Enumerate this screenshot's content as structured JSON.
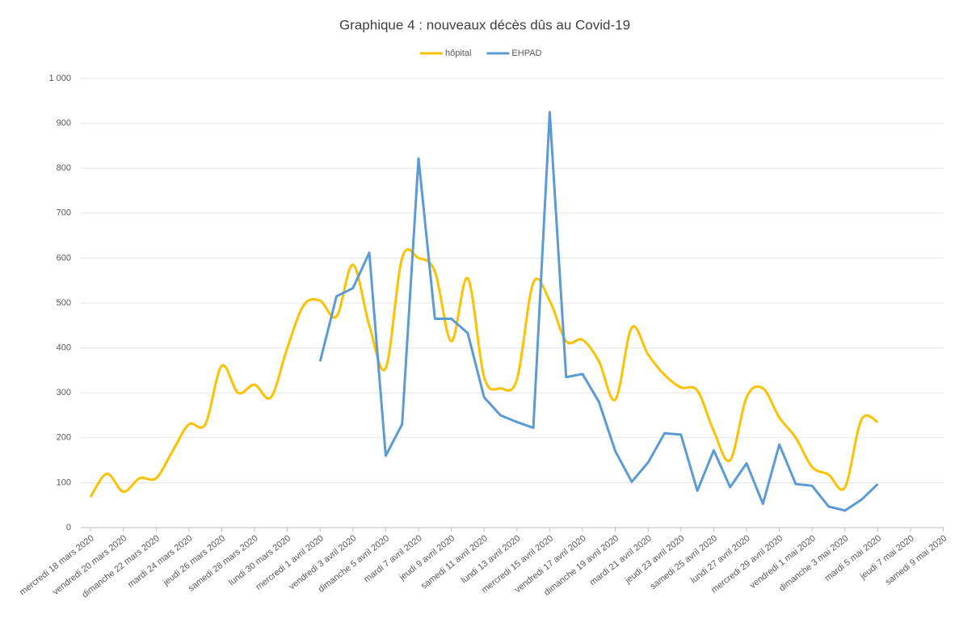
{
  "chart_data": {
    "type": "line",
    "title": "Graphique 4 : nouveaux décès dûs au Covid-19",
    "categories": [
      "mercredi 18 mars 2020",
      null,
      "vendredi 20 mars 2020",
      null,
      "dimanche 22 mars 2020",
      null,
      "mardi 24 mars 2020",
      null,
      "jeudi 26 mars 2020",
      null,
      "samedi 28 mars 2020",
      null,
      "lundi 30 mars 2020",
      null,
      "mercredi 1 avril 2020",
      null,
      "vendredi 3 avril 2020",
      null,
      "dimanche 5 avril 2020",
      null,
      "mardi 7 avril 2020",
      null,
      "jeudi 9 avril 2020",
      null,
      "samedi 11 avril 2020",
      null,
      "lundi 13 avril 2020",
      null,
      "mercredi 15 avril 2020",
      null,
      "vendredi 17 avril 2020",
      null,
      "dimanche 19 avril 2020",
      null,
      "mardi 21 avril 2020",
      null,
      "jeudi 23 avril 2020",
      null,
      "samedi 25 avril 2020",
      null,
      "lundi 27 avril 2020",
      null,
      "mercredi 29 avril 2020",
      null,
      "vendredi 1 mai 2020",
      null,
      "dimanche 3 mai 2020",
      null,
      "mardi 5 mai 2020",
      null,
      "jeudi 7 mai 2020",
      null,
      "samedi 9 mai 2020"
    ],
    "series": [
      {
        "name": "hôpital",
        "color": "#ffc000",
        "smooth": true,
        "values": [
          68,
          120,
          80,
          110,
          110,
          170,
          230,
          230,
          360,
          300,
          318,
          290,
          400,
          495,
          505,
          470,
          585,
          450,
          355,
          600,
          600,
          570,
          415,
          555,
          335,
          310,
          330,
          545,
          505,
          415,
          418,
          370,
          285,
          445,
          385,
          340,
          312,
          305,
          215,
          150,
          290,
          310,
          245,
          200,
          135,
          118,
          90,
          240,
          235,
          null,
          null,
          null,
          null
        ]
      },
      {
        "name": "EHPAD",
        "color": "#5b9bd5",
        "smooth": false,
        "values": [
          null,
          null,
          null,
          null,
          null,
          null,
          null,
          null,
          null,
          null,
          null,
          null,
          null,
          null,
          370,
          515,
          533,
          612,
          160,
          230,
          822,
          465,
          465,
          433,
          290,
          250,
          235,
          222,
          925,
          335,
          342,
          280,
          170,
          102,
          145,
          210,
          207,
          82,
          172,
          90,
          143,
          53,
          185,
          97,
          93,
          47,
          38,
          62,
          97,
          null,
          null,
          null,
          null
        ]
      }
    ],
    "ylim": [
      0,
      1000
    ],
    "yticks": [
      0,
      100,
      200,
      300,
      400,
      500,
      600,
      700,
      800,
      900,
      {
        "value": 1000,
        "label": "1 000"
      }
    ],
    "grid": true,
    "legend": "top"
  }
}
